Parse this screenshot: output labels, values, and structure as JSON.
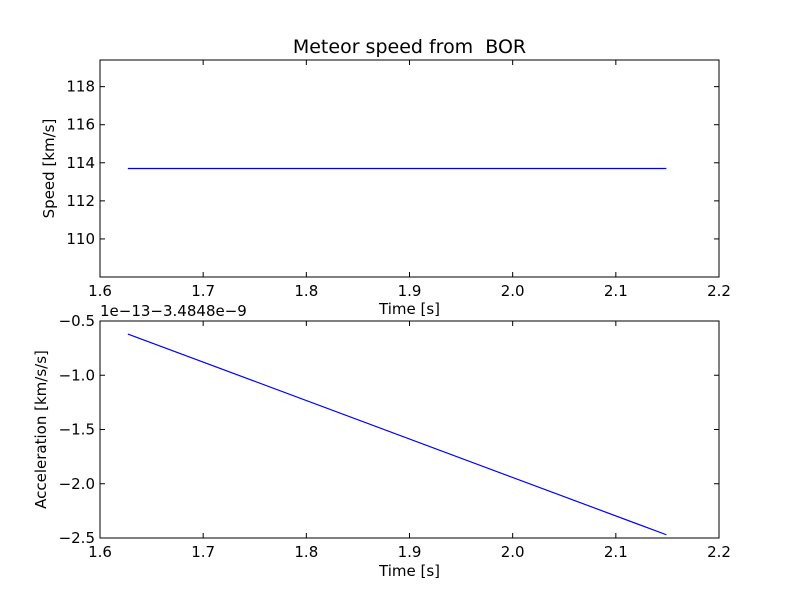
{
  "chart_data": [
    {
      "type": "line",
      "title": "Meteor speed from  BOR",
      "xlabel": "Time [s]",
      "ylabel": "Speed [km/s]",
      "xlim": [
        1.6,
        2.2
      ],
      "ylim": [
        108,
        119.4
      ],
      "xticks": [
        1.6,
        1.7,
        1.8,
        1.9,
        2.0,
        2.1,
        2.2
      ],
      "xtick_labels": [
        "1.6",
        "1.7",
        "1.8",
        "1.9",
        "2.0",
        "2.1",
        "2.2"
      ],
      "yticks": [
        110,
        112,
        114,
        116,
        118
      ],
      "ytick_labels": [
        "110",
        "112",
        "114",
        "116",
        "118"
      ],
      "grid": false,
      "series": [
        {
          "color": "#0000ff",
          "x": [
            1.627,
            2.149
          ],
          "y": [
            113.7,
            113.7
          ]
        }
      ]
    },
    {
      "type": "line",
      "title": "",
      "offset_label": "1e−13−3.4848e−9",
      "xlabel": "Time [s]",
      "ylabel": "Acceleration [km/s/s]",
      "xlim": [
        1.6,
        2.2
      ],
      "ylim": [
        -2.5,
        -0.5
      ],
      "xticks": [
        1.6,
        1.7,
        1.8,
        1.9,
        2.0,
        2.1,
        2.2
      ],
      "xtick_labels": [
        "1.6",
        "1.7",
        "1.8",
        "1.9",
        "2.0",
        "2.1",
        "2.2"
      ],
      "yticks": [
        -2.5,
        -2.0,
        -1.5,
        -1.0,
        -0.5
      ],
      "ytick_labels": [
        "−2.5",
        "−2.0",
        "−1.5",
        "−1.0",
        "−0.5"
      ],
      "grid": false,
      "series": [
        {
          "color": "#0000ff",
          "x": [
            1.627,
            2.149
          ],
          "y": [
            -0.62,
            -2.47
          ]
        }
      ]
    }
  ]
}
